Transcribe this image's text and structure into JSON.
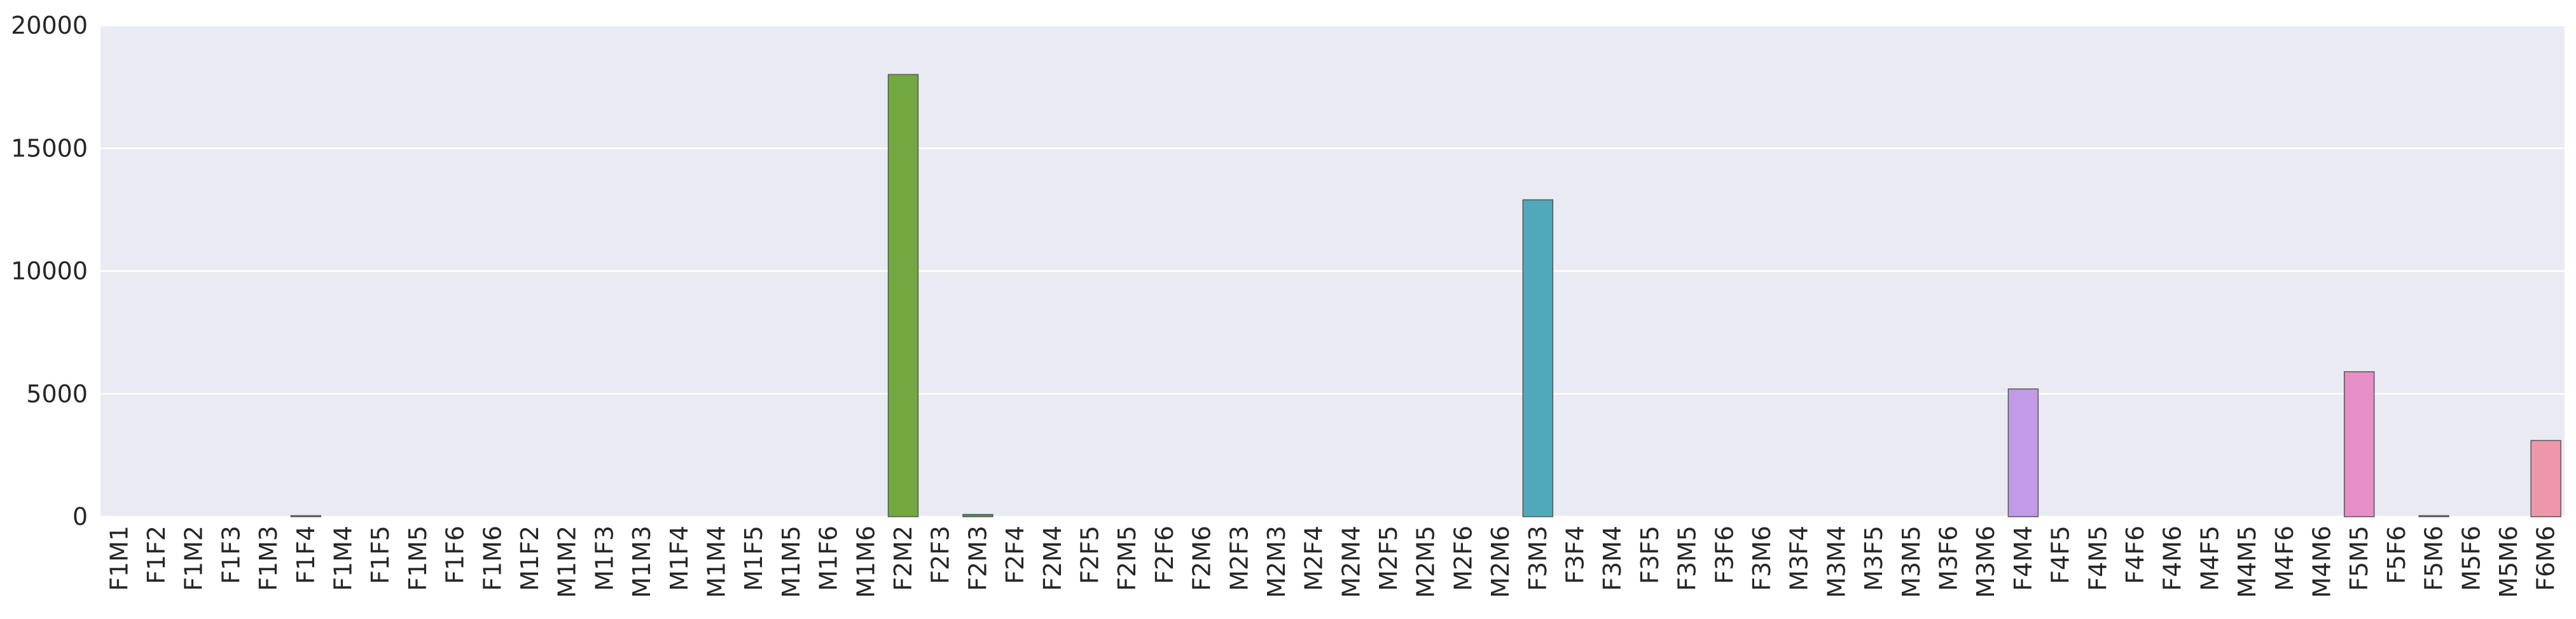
{
  "chart_data": {
    "type": "bar",
    "title": "",
    "xlabel": "",
    "ylabel": "",
    "ylim": [
      0,
      20000
    ],
    "yticks": [
      0,
      5000,
      10000,
      15000,
      20000
    ],
    "grid": true,
    "legend": "none",
    "colors": {
      "background": "#EAEAF2",
      "grid": "#FFFFFF",
      "default_bar": "#CCCCCC",
      "edge": "#555555"
    },
    "categories": [
      "F1M1",
      "F1F2",
      "F1M2",
      "F1F3",
      "F1M3",
      "F1F4",
      "F1M4",
      "F1F5",
      "F1M5",
      "F1F6",
      "F1M6",
      "M1F2",
      "M1M2",
      "M1F3",
      "M1M3",
      "M1F4",
      "M1M4",
      "M1F5",
      "M1M5",
      "M1F6",
      "M1M6",
      "F2M2",
      "F2F3",
      "F2M3",
      "F2F4",
      "F2M4",
      "F2F5",
      "F2M5",
      "F2F6",
      "F2M6",
      "M2F3",
      "M2M3",
      "M2F4",
      "M2M4",
      "M2F5",
      "M2M5",
      "M2F6",
      "M2M6",
      "F3M3",
      "F3F4",
      "F3M4",
      "F3F5",
      "F3M5",
      "F3F6",
      "F3M6",
      "M3F4",
      "M3M4",
      "M3F5",
      "M3M5",
      "M3F6",
      "M3M6",
      "F4M4",
      "F4F5",
      "F4M5",
      "F4F6",
      "F4M6",
      "M4F5",
      "M4M5",
      "M4F6",
      "M4M6",
      "F5M5",
      "F5F6",
      "F5M6",
      "M5F6",
      "M5M6",
      "F6M6"
    ],
    "values": [
      0,
      0,
      0,
      0,
      0,
      40,
      0,
      0,
      0,
      0,
      0,
      0,
      0,
      0,
      0,
      0,
      0,
      0,
      0,
      0,
      0,
      18000,
      0,
      90,
      0,
      0,
      0,
      0,
      0,
      0,
      0,
      0,
      0,
      0,
      0,
      0,
      0,
      0,
      12900,
      0,
      0,
      0,
      0,
      0,
      0,
      0,
      0,
      0,
      0,
      0,
      0,
      5200,
      0,
      0,
      0,
      0,
      0,
      0,
      0,
      0,
      5900,
      0,
      40,
      0,
      0,
      3100
    ],
    "bar_colors": {
      "F1F4": "#d48a8a",
      "F2M2": "#72a83f",
      "F2M3": "#3f9b57",
      "F3M3": "#4fa9b9",
      "F4M4": "#c19be6",
      "F5M5": "#e68fc7",
      "F5M6": "#a88ad8",
      "F6M6": "#ed98aa"
    }
  }
}
